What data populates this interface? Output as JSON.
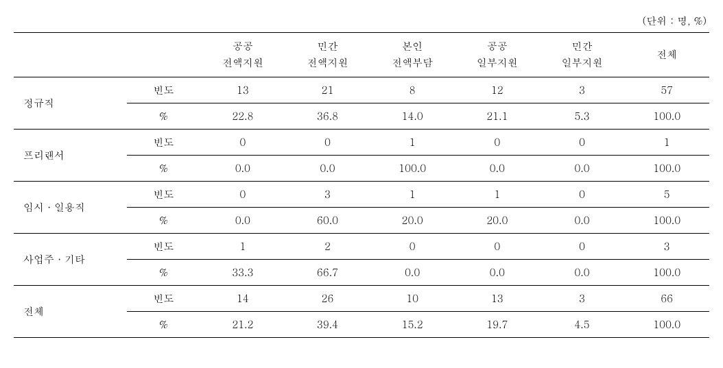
{
  "unit_label": "(단위 : 명, %)",
  "columns": [
    {
      "line1": "공공",
      "line2": "전액지원"
    },
    {
      "line1": "민간",
      "line2": "전액지원"
    },
    {
      "line1": "본인",
      "line2": "전액부담"
    },
    {
      "line1": "공공",
      "line2": "일부지원"
    },
    {
      "line1": "민간",
      "line2": "일부지원"
    }
  ],
  "total_label": "전체",
  "metric_freq": "빈도",
  "metric_pct": "%",
  "row_groups": [
    {
      "label": "정규직",
      "freq": [
        "13",
        "21",
        "8",
        "12",
        "3",
        "57"
      ],
      "pct": [
        "22.8",
        "36.8",
        "14.0",
        "21.1",
        "5.3",
        "100.0"
      ]
    },
    {
      "label": "프리랜서",
      "freq": [
        "0",
        "0",
        "1",
        "0",
        "0",
        "1"
      ],
      "pct": [
        "0.0",
        "0.0",
        "100.0",
        "0.0",
        "0.0",
        "100.0"
      ]
    },
    {
      "label": "임시 · 일용직",
      "freq": [
        "0",
        "3",
        "1",
        "1",
        "0",
        "5"
      ],
      "pct": [
        "0.0",
        "60.0",
        "20.0",
        "20.0",
        "0.0",
        "100.0"
      ]
    },
    {
      "label": "사업주 · 기타",
      "freq": [
        "1",
        "2",
        "0",
        "0",
        "0",
        "3"
      ],
      "pct": [
        "33.3",
        "66.7",
        "0.0",
        "0.0",
        "0.0",
        "100.0"
      ]
    },
    {
      "label": "전체",
      "freq": [
        "14",
        "26",
        "10",
        "13",
        "3",
        "66"
      ],
      "pct": [
        "21.2",
        "39.4",
        "15.2",
        "19.7",
        "4.5",
        "100.0"
      ]
    }
  ]
}
